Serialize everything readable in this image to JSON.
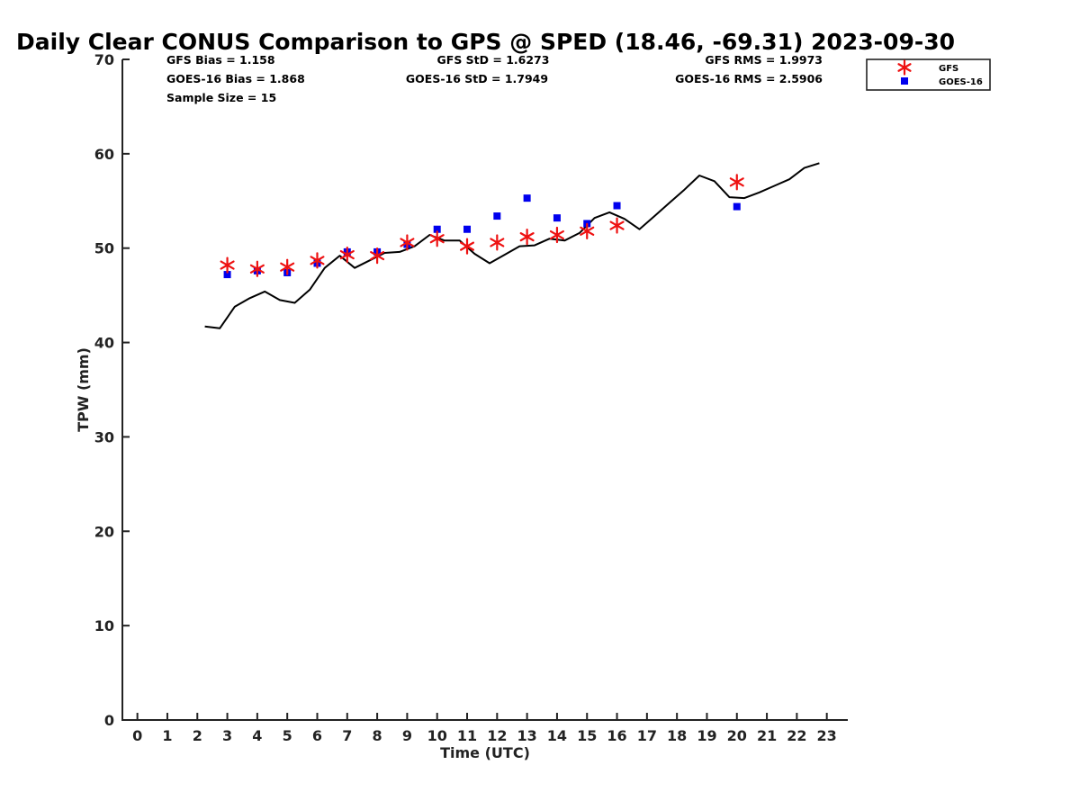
{
  "chart_data": {
    "type": "scatter",
    "title": "Daily Clear CONUS Comparison to GPS @ SPED (18.46, -69.31) 2023-09-30",
    "xlabel": "Time (UTC)",
    "ylabel": "TPW (mm)",
    "xlim": [
      -0.5,
      23.7
    ],
    "ylim": [
      0,
      70
    ],
    "x_ticks": [
      0,
      1,
      2,
      3,
      4,
      5,
      6,
      7,
      8,
      9,
      10,
      11,
      12,
      13,
      14,
      15,
      16,
      17,
      18,
      19,
      20,
      21,
      22,
      23
    ],
    "y_ticks": [
      0,
      10,
      20,
      30,
      40,
      50,
      60,
      70
    ],
    "grid": false,
    "legend_position": "top-right",
    "stats": {
      "gfs_bias": "GFS Bias = 1.158",
      "goes_bias": "GOES-16 Bias = 1.868",
      "sample_size": "Sample Size = 15",
      "gfs_std": "GFS StD = 1.6273",
      "goes_std": "GOES-16 StD = 1.7949",
      "gfs_rms": "GFS RMS = 1.9973",
      "goes_rms": "GOES-16 RMS = 2.5906"
    },
    "series": [
      {
        "name": "GFS",
        "kind": "scatter",
        "marker": "asterisk",
        "color": "#ee1111",
        "x": [
          3,
          4,
          5,
          6,
          7,
          8,
          9,
          10,
          11,
          12,
          13,
          14,
          15,
          16,
          20
        ],
        "y": [
          48.2,
          47.8,
          48.0,
          48.7,
          49.3,
          49.2,
          50.6,
          51.0,
          50.2,
          50.6,
          51.2,
          51.4,
          51.8,
          52.4,
          57.0
        ]
      },
      {
        "name": "GOES-16",
        "kind": "scatter",
        "marker": "square",
        "color": "#0000ee",
        "x": [
          3,
          4,
          5,
          6,
          7,
          8,
          9,
          10,
          11,
          12,
          13,
          14,
          15,
          16,
          20
        ],
        "y": [
          47.2,
          47.6,
          47.4,
          48.4,
          49.6,
          49.6,
          50.4,
          52.0,
          52.0,
          53.4,
          55.3,
          53.2,
          52.6,
          54.5,
          54.4
        ]
      },
      {
        "kind": "line",
        "color": "#000000",
        "x": [
          2.25,
          2.75,
          3.25,
          3.75,
          4.25,
          4.75,
          5.25,
          5.75,
          6.25,
          6.75,
          7.25,
          7.75,
          8.25,
          8.75,
          9.25,
          9.75,
          10.25,
          10.75,
          11.25,
          11.75,
          12.25,
          12.75,
          13.25,
          13.75,
          14.25,
          14.75,
          15.25,
          15.75,
          16.25,
          16.75,
          17.25,
          17.75,
          18.25,
          18.75,
          19.25,
          19.75,
          20.25,
          20.75,
          21.25,
          21.75,
          22.25,
          22.75
        ],
        "y": [
          41.7,
          41.5,
          43.8,
          44.7,
          45.4,
          44.5,
          44.2,
          45.6,
          47.9,
          49.2,
          47.9,
          48.7,
          49.5,
          49.6,
          50.2,
          51.4,
          50.8,
          50.8,
          49.4,
          48.4,
          49.3,
          50.2,
          50.3,
          51.0,
          50.8,
          51.6,
          53.2,
          53.8,
          53.1,
          52.0,
          53.4,
          54.8,
          56.2,
          57.7,
          57.1,
          55.4,
          55.3,
          55.9,
          56.6,
          57.3,
          58.5,
          59.0
        ]
      }
    ]
  }
}
